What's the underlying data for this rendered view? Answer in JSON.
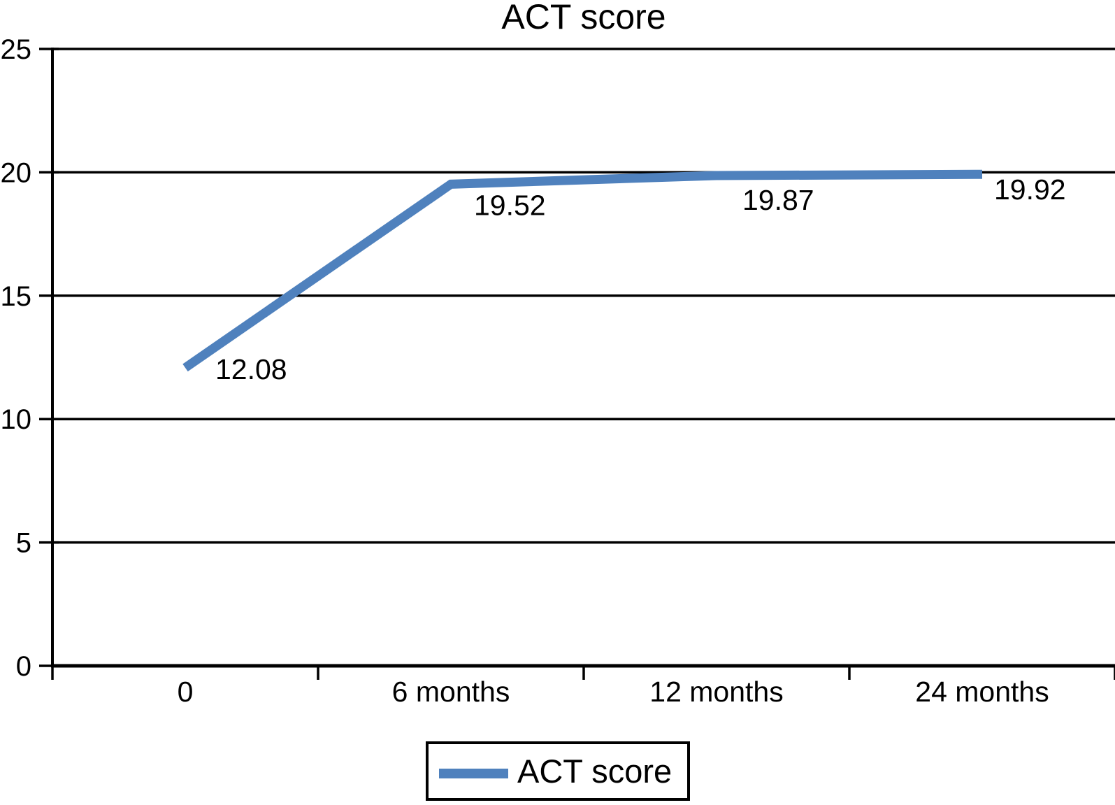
{
  "figure": {
    "title": "ACT score"
  },
  "chart_data": {
    "type": "line",
    "title": "ACT score",
    "categories": [
      "0",
      "6 months",
      "12 months",
      "24 months"
    ],
    "series": [
      {
        "name": "ACT score",
        "color": "#4f81bd",
        "values": [
          12.08,
          19.52,
          19.87,
          19.92
        ],
        "data_labels": [
          "12.08",
          "19.52",
          "19.87",
          "19.92"
        ]
      }
    ],
    "xlabel": "",
    "ylabel": "",
    "ylim": [
      0,
      25
    ],
    "yticks": [
      0,
      5,
      10,
      15,
      20,
      25
    ],
    "ytick_labels": [
      "0",
      "5",
      "10",
      "15",
      "20",
      "25"
    ],
    "grid": "horizontal-major",
    "legend": {
      "position": "bottom-center",
      "entries": [
        "ACT score"
      ]
    },
    "colors": {
      "series": "#4f81bd",
      "axis": "#000000",
      "text": "#000000",
      "background": "#ffffff"
    }
  }
}
